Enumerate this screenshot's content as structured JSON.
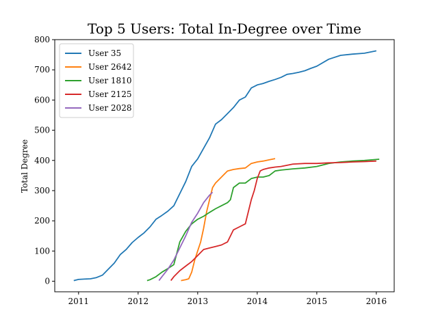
{
  "chart_data": {
    "type": "line",
    "title": "Top 5 Users: Total In-Degree over Time",
    "xlabel": "",
    "ylabel": "Total Degree",
    "xlim": [
      2010.6,
      2016.3
    ],
    "ylim": [
      -35,
      800
    ],
    "x_ticks": [
      2011,
      2012,
      2013,
      2014,
      2015,
      2016
    ],
    "y_ticks": [
      0,
      100,
      200,
      300,
      400,
      500,
      600,
      700,
      800
    ],
    "grid": false,
    "legend_position": "top-left",
    "series": [
      {
        "name": "User 35",
        "color": "#1f77b4",
        "x": [
          2010.92,
          2011.0,
          2011.1,
          2011.2,
          2011.3,
          2011.4,
          2011.5,
          2011.6,
          2011.7,
          2011.8,
          2011.9,
          2012.0,
          2012.1,
          2012.2,
          2012.3,
          2012.4,
          2012.5,
          2012.6,
          2012.7,
          2012.8,
          2012.9,
          2013.0,
          2013.1,
          2013.2,
          2013.3,
          2013.4,
          2013.5,
          2013.6,
          2013.7,
          2013.8,
          2013.9,
          2014.0,
          2014.1,
          2014.2,
          2014.3,
          2014.4,
          2014.5,
          2014.6,
          2014.7,
          2014.8,
          2014.9,
          2015.0,
          2015.2,
          2015.4,
          2015.6,
          2015.8,
          2016.0
        ],
        "values": [
          2,
          6,
          7,
          8,
          12,
          20,
          40,
          60,
          88,
          105,
          128,
          145,
          160,
          180,
          205,
          218,
          232,
          250,
          290,
          330,
          380,
          405,
          440,
          475,
          520,
          535,
          555,
          575,
          600,
          610,
          640,
          650,
          655,
          662,
          668,
          675,
          685,
          688,
          692,
          697,
          705,
          712,
          735,
          748,
          752,
          755,
          763
        ]
      },
      {
        "name": "User 2642",
        "color": "#ff7f0e",
        "x": [
          2012.72,
          2012.8,
          2012.85,
          2012.9,
          2012.95,
          2013.0,
          2013.05,
          2013.1,
          2013.15,
          2013.2,
          2013.25,
          2013.3,
          2013.4,
          2013.5,
          2013.6,
          2013.7,
          2013.8,
          2013.9,
          2014.0,
          2014.1,
          2014.2,
          2014.3
        ],
        "values": [
          2,
          5,
          8,
          30,
          70,
          100,
          130,
          175,
          230,
          270,
          310,
          325,
          345,
          365,
          370,
          373,
          375,
          390,
          395,
          398,
          402,
          406
        ]
      },
      {
        "name": "User 1810",
        "color": "#2ca02c",
        "x": [
          2012.15,
          2012.2,
          2012.3,
          2012.4,
          2012.5,
          2012.6,
          2012.7,
          2012.8,
          2012.9,
          2013.0,
          2013.1,
          2013.2,
          2013.3,
          2013.4,
          2013.5,
          2013.55,
          2013.6,
          2013.7,
          2013.8,
          2013.9,
          2014.0,
          2014.1,
          2014.2,
          2014.3,
          2014.4,
          2014.6,
          2014.8,
          2015.0,
          2015.2,
          2015.4,
          2015.6,
          2015.8,
          2016.05
        ],
        "values": [
          2,
          5,
          15,
          30,
          42,
          55,
          130,
          165,
          190,
          205,
          215,
          228,
          240,
          250,
          260,
          270,
          310,
          325,
          325,
          340,
          345,
          345,
          350,
          365,
          368,
          372,
          375,
          380,
          390,
          395,
          398,
          400,
          404
        ]
      },
      {
        "name": "User 2125",
        "color": "#d62728",
        "x": [
          2012.55,
          2012.6,
          2012.7,
          2012.8,
          2012.9,
          2013.0,
          2013.1,
          2013.2,
          2013.3,
          2013.4,
          2013.5,
          2013.6,
          2013.7,
          2013.8,
          2013.9,
          2013.95,
          2014.0,
          2014.05,
          2014.1,
          2014.2,
          2014.3,
          2014.4,
          2014.6,
          2014.8,
          2015.0,
          2015.2,
          2015.4,
          2015.6,
          2015.8,
          2016.0
        ],
        "values": [
          2,
          15,
          35,
          50,
          65,
          85,
          105,
          110,
          115,
          120,
          130,
          170,
          180,
          190,
          270,
          300,
          340,
          365,
          370,
          375,
          378,
          380,
          388,
          390,
          390,
          392,
          393,
          395,
          396,
          398
        ]
      },
      {
        "name": "User 2028",
        "color": "#9467bd",
        "x": [
          2012.35,
          2012.4,
          2012.5,
          2012.6,
          2012.7,
          2012.8,
          2012.9,
          2013.0,
          2013.1,
          2013.2,
          2013.25
        ],
        "values": [
          2,
          15,
          40,
          70,
          110,
          150,
          195,
          225,
          260,
          285,
          295
        ]
      }
    ]
  }
}
